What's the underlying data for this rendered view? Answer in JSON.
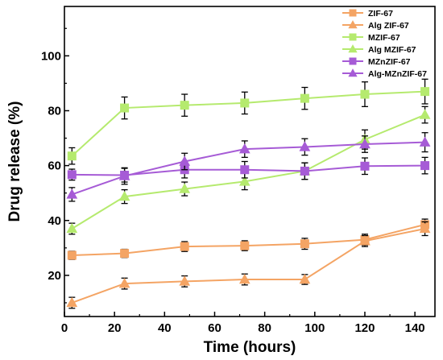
{
  "chart_data": {
    "type": "line",
    "xlabel": "Time (hours)",
    "ylabel": "Drug release (%)",
    "xlim": [
      0,
      148
    ],
    "ylim": [
      5,
      118
    ],
    "xticks": [
      0,
      20,
      40,
      60,
      80,
      100,
      120,
      140
    ],
    "yticks": [
      20,
      40,
      60,
      80,
      100
    ],
    "grid": false,
    "legend_position": "top-right",
    "x": [
      3,
      24,
      48,
      72,
      96,
      120,
      144
    ],
    "series": [
      {
        "name": "ZIF-67",
        "marker": "square",
        "color": "#f4a464",
        "values": [
          27.3,
          28.0,
          30.5,
          30.8,
          31.5,
          33.0,
          38.5
        ],
        "errors": [
          1.5,
          1.5,
          1.8,
          1.8,
          2.0,
          2.0,
          2.0
        ]
      },
      {
        "name": "Alg ZIF-67",
        "marker": "triangle",
        "color": "#f4a464",
        "values": [
          10.0,
          17.0,
          17.8,
          18.5,
          18.5,
          32.5,
          37.0
        ],
        "errors": [
          2.0,
          2.0,
          2.0,
          2.0,
          1.8,
          2.0,
          2.5
        ]
      },
      {
        "name": "MZIF-67",
        "marker": "square",
        "color": "#b5ea6e",
        "values": [
          63.5,
          81.0,
          82.0,
          82.8,
          84.5,
          86.0,
          87.0
        ],
        "errors": [
          3.0,
          4.0,
          4.0,
          4.0,
          4.0,
          4.5,
          4.5
        ]
      },
      {
        "name": "Alg MZIF-67",
        "marker": "triangle",
        "color": "#b5ea6e",
        "values": [
          37.0,
          48.7,
          51.5,
          54.2,
          58.0,
          69.5,
          78.5
        ],
        "errors": [
          2.0,
          2.5,
          2.5,
          3.0,
          3.0,
          3.5,
          3.0
        ]
      },
      {
        "name": "MZnZIF-67",
        "marker": "square",
        "color": "#a65bd6",
        "values": [
          56.7,
          56.5,
          58.5,
          58.5,
          58.0,
          59.8,
          60.0
        ],
        "errors": [
          2.0,
          2.5,
          3.0,
          3.0,
          3.0,
          3.0,
          3.0
        ]
      },
      {
        "name": "Alg-MZnZIF-67",
        "marker": "triangle",
        "color": "#a65bd6",
        "values": [
          49.5,
          56.2,
          61.5,
          66.0,
          66.8,
          67.8,
          68.5
        ],
        "errors": [
          2.5,
          3.0,
          3.0,
          3.0,
          3.0,
          3.0,
          3.5
        ]
      }
    ]
  }
}
